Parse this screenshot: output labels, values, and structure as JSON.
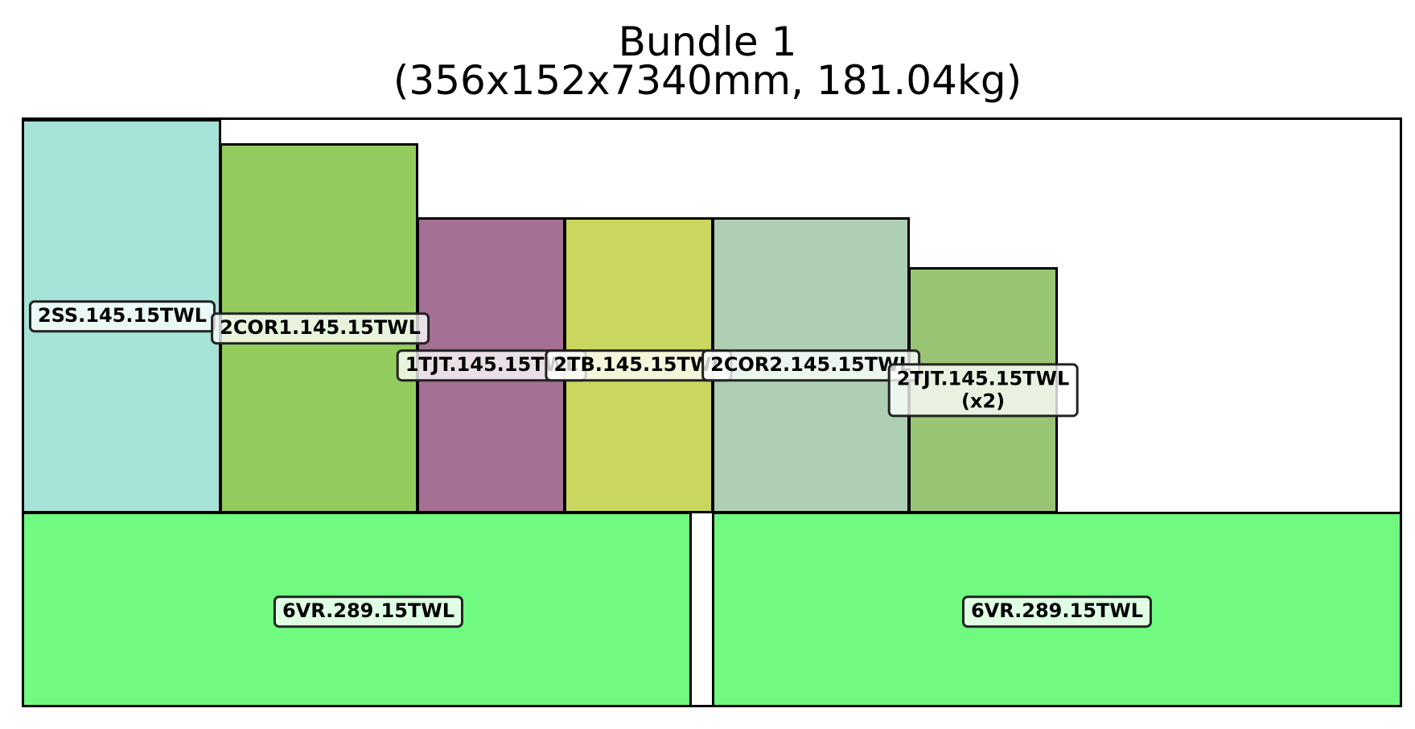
{
  "title": {
    "line1": "Bundle 1",
    "line2": "(356x152x7340mm, 181.04kg)"
  },
  "bundle": {
    "dimensions_mm": {
      "width": 356,
      "height": 152,
      "length": 7340
    },
    "weight_kg": 181.04
  },
  "pieces": [
    {
      "id": "p-6vr-a",
      "label": "6VR.289.15TWL",
      "qty": "",
      "color": "#70fa80"
    },
    {
      "id": "p-6vr-b",
      "label": "6VR.289.15TWL",
      "qty": "",
      "color": "#70fa80"
    },
    {
      "id": "p-2ss",
      "label": "2SS.145.15TWL",
      "qty": "",
      "color": "#a5e2d7"
    },
    {
      "id": "p-2cor1",
      "label": "2COR1.145.15TWL",
      "qty": "",
      "color": "#94cb5e"
    },
    {
      "id": "p-1tjt",
      "label": "1TJT.145.15TWL",
      "qty": "",
      "color": "#a66f94"
    },
    {
      "id": "p-2tb",
      "label": "2TB.145.15TWL",
      "qty": "",
      "color": "#cbd65e"
    },
    {
      "id": "p-2cor2",
      "label": "2COR2.145.15TWL",
      "qty": "",
      "color": "#afcfb4"
    },
    {
      "id": "p-2tjt",
      "label": "2TJT.145.15TWL",
      "qty": "(x2)",
      "color": "#99c473"
    }
  ],
  "colors": {
    "outline": "#000000",
    "label_border": "#222222",
    "background": "#ffffff"
  }
}
